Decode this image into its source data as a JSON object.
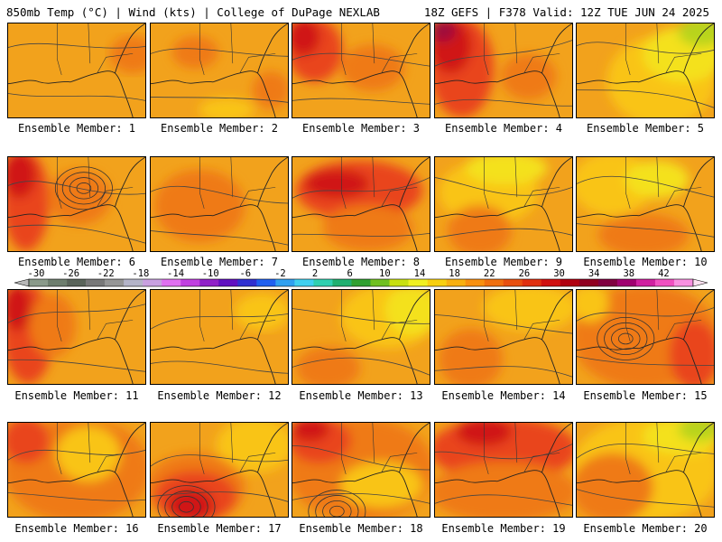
{
  "header": {
    "left": "850mb Temp (°C) | Wind (kts) | College of DuPage NEXLAB",
    "right": "18Z GEFS | F378 Valid: 12Z TUE JUN 24 2025"
  },
  "member_label_prefix": "Ensemble Member: ",
  "members": [
    1,
    2,
    3,
    4,
    5,
    6,
    7,
    8,
    9,
    10,
    11,
    12,
    13,
    14,
    15,
    16,
    17,
    18,
    19,
    20
  ],
  "colorbar": {
    "tick_labels": [
      "-30",
      "-26",
      "-22",
      "-18",
      "-14",
      "-10",
      "-6",
      "-2",
      "2",
      "6",
      "10",
      "14",
      "18",
      "22",
      "26",
      "30",
      "34",
      "38",
      "42"
    ],
    "colors": [
      "#8a9a8a",
      "#6e7e6e",
      "#5a645a",
      "#787878",
      "#969696",
      "#b4b4c8",
      "#c8a0e0",
      "#e070f0",
      "#c040e0",
      "#9020c8",
      "#6010c0",
      "#3030d0",
      "#2060f0",
      "#30a0f0",
      "#40d0f0",
      "#30d0b0",
      "#20b070",
      "#30a030",
      "#70c020",
      "#c8e010",
      "#f0f020",
      "#f8d010",
      "#f8b010",
      "#f89010",
      "#f07010",
      "#e85010",
      "#e03010",
      "#d01010",
      "#b00010",
      "#900020",
      "#800040",
      "#a00070",
      "#d020a0",
      "#f050c0",
      "#f890e0"
    ]
  },
  "panel_colors": {
    "base": "#f2a21c",
    "warm": "#ef7a14",
    "hot": "#e9441b",
    "very_hot": "#d01919",
    "cool": "#f9c415",
    "yellow": "#f4e11a",
    "green": "#b8d41a",
    "magenta": "#a0103a"
  }
}
